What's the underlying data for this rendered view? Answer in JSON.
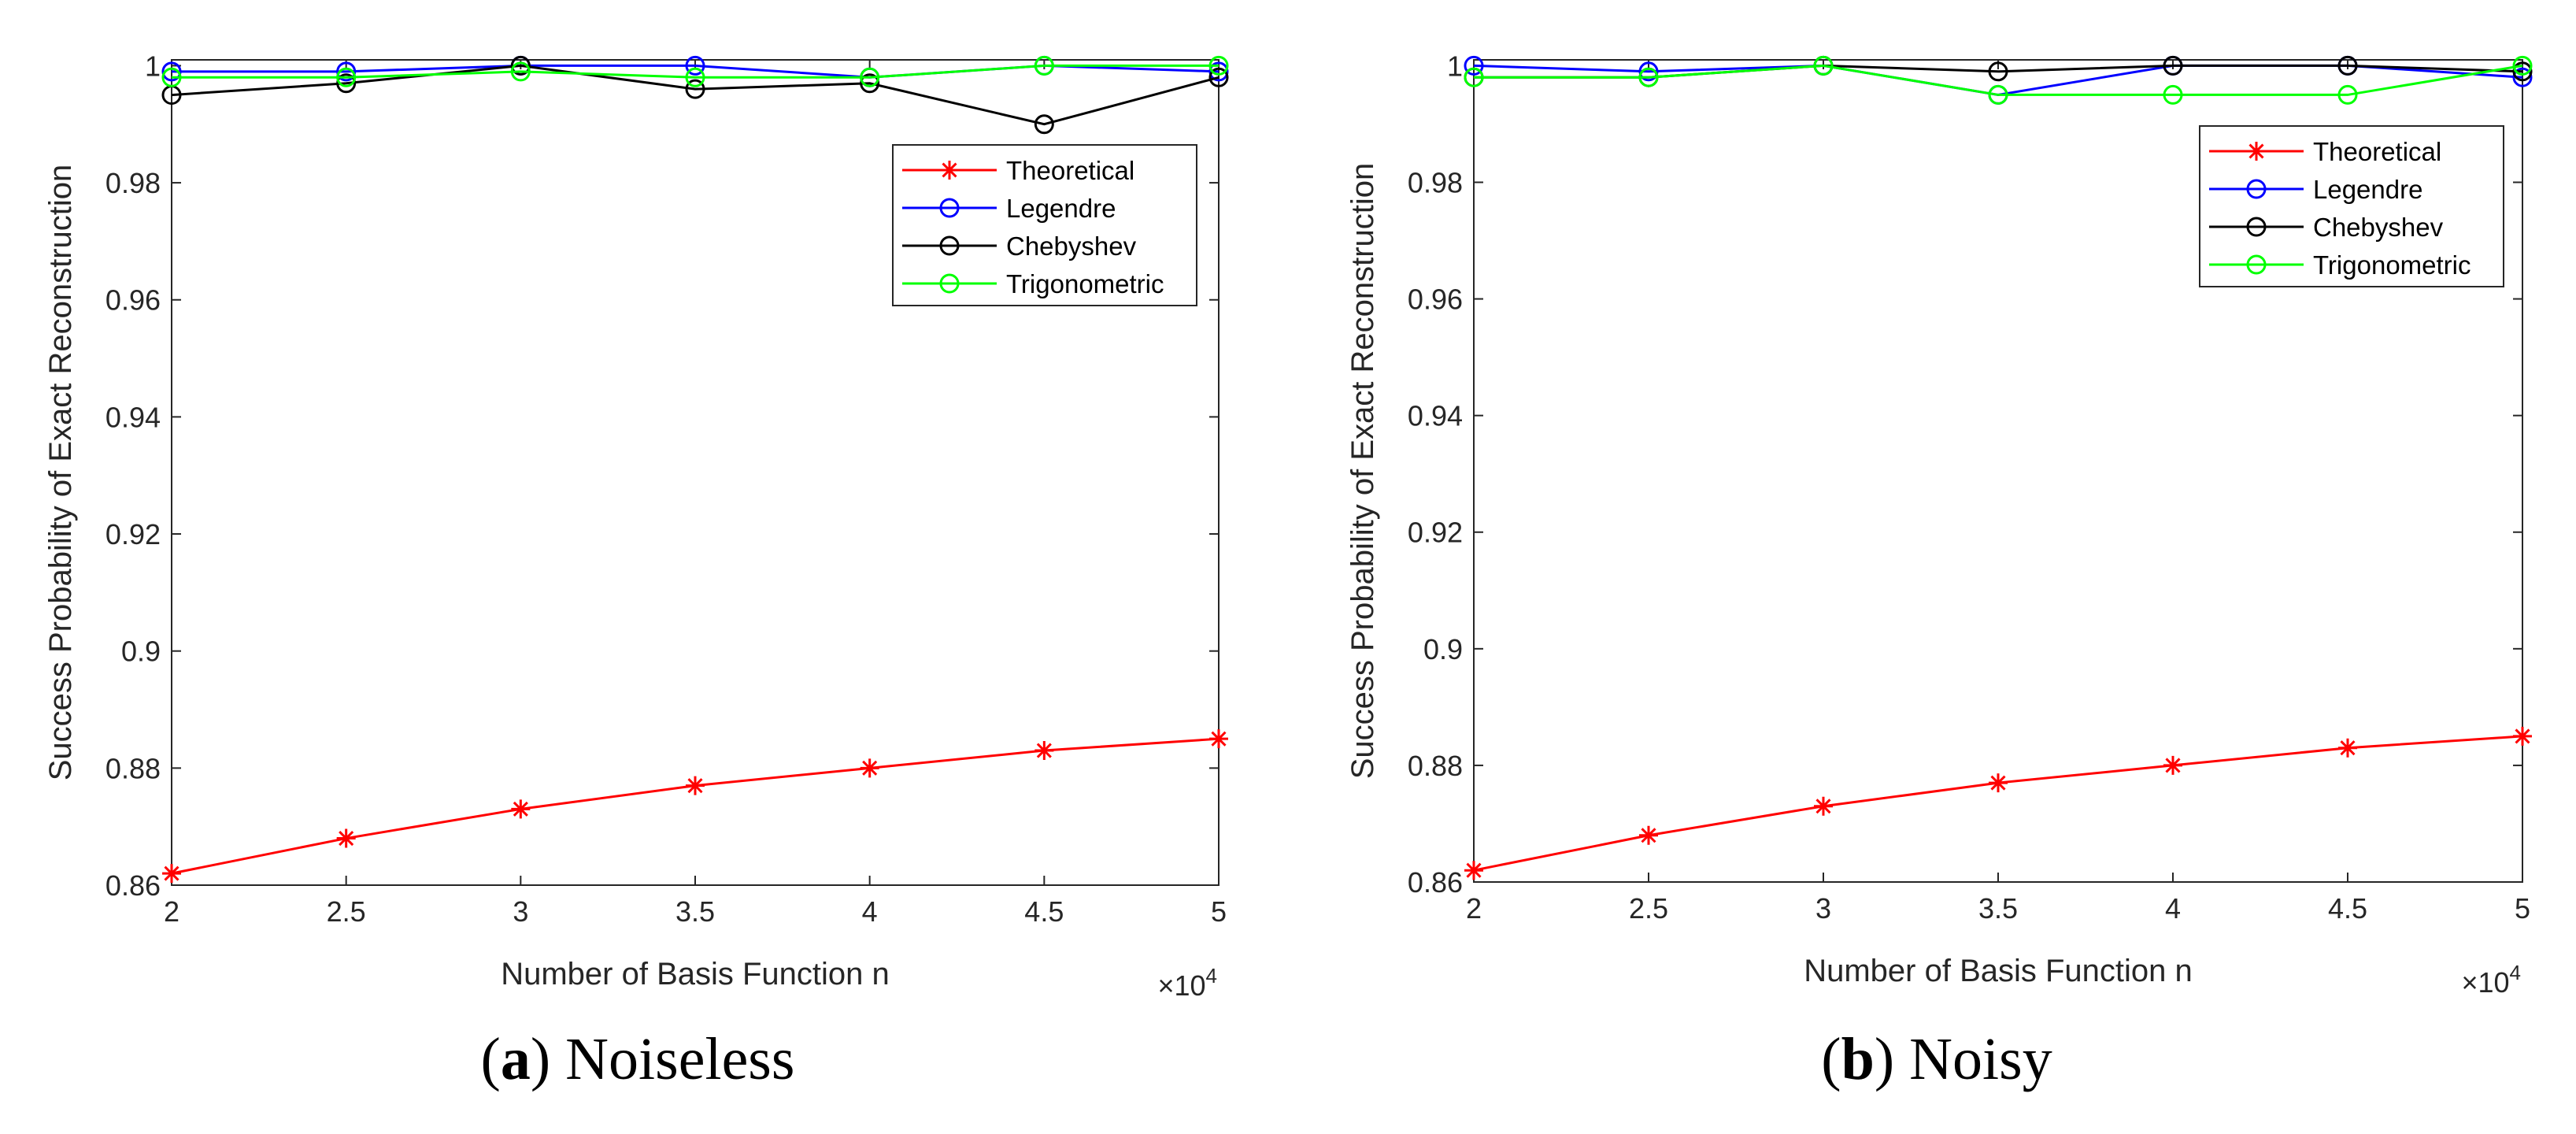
{
  "chart_data": [
    {
      "type": "line",
      "caption": {
        "letter": "a",
        "text": "Noiseless"
      },
      "xlabel": "Number of Basis Function n",
      "ylabel": "Success Probability of Exact Reconstruction",
      "x_multiplier": {
        "base": "×10",
        "exp": "4"
      },
      "xlim": [
        2,
        5
      ],
      "ylim": [
        0.86,
        1.001
      ],
      "xticks": [
        2,
        2.5,
        3,
        3.5,
        4,
        4.5,
        5
      ],
      "xtick_labels": [
        "2",
        "2.5",
        "3",
        "3.5",
        "4",
        "4.5",
        "5"
      ],
      "yticks": [
        0.86,
        0.88,
        0.9,
        0.92,
        0.94,
        0.96,
        0.98,
        1
      ],
      "ytick_labels": [
        "0.86",
        "0.88",
        "0.9",
        "0.92",
        "0.94",
        "0.96",
        "0.98",
        "1"
      ],
      "legend_position": "top-right",
      "x": [
        2,
        2.5,
        3,
        3.5,
        4,
        4.5,
        5
      ],
      "series": [
        {
          "name": "Theoretical",
          "color": "#ff0000",
          "marker": "star",
          "values": [
            0.862,
            0.868,
            0.873,
            0.877,
            0.88,
            0.883,
            0.885
          ]
        },
        {
          "name": "Legendre",
          "color": "#0000ff",
          "marker": "circle",
          "values": [
            0.999,
            0.999,
            1.0,
            1.0,
            0.998,
            1.0,
            0.999
          ]
        },
        {
          "name": "Chebyshev",
          "color": "#000000",
          "marker": "circle",
          "values": [
            0.995,
            0.997,
            1.0,
            0.996,
            0.997,
            0.99,
            0.998
          ]
        },
        {
          "name": "Trigonometric",
          "color": "#00ff00",
          "marker": "circle",
          "values": [
            0.998,
            0.998,
            0.999,
            0.998,
            0.998,
            1.0,
            1.0
          ]
        }
      ]
    },
    {
      "type": "line",
      "caption": {
        "letter": "b",
        "text": "Noisy"
      },
      "xlabel": "Number of Basis Function n",
      "ylabel": "Success Probability of Exact Reconstruction",
      "x_multiplier": {
        "base": "×10",
        "exp": "4"
      },
      "xlim": [
        2,
        5
      ],
      "ylim": [
        0.86,
        1.001
      ],
      "xticks": [
        2,
        2.5,
        3,
        3.5,
        4,
        4.5,
        5
      ],
      "xtick_labels": [
        "2",
        "2.5",
        "3",
        "3.5",
        "4",
        "4.5",
        "5"
      ],
      "yticks": [
        0.86,
        0.88,
        0.9,
        0.92,
        0.94,
        0.96,
        0.98,
        1
      ],
      "ytick_labels": [
        "0.86",
        "0.88",
        "0.9",
        "0.92",
        "0.94",
        "0.96",
        "0.98",
        "1"
      ],
      "legend_position": "top-right",
      "x": [
        2,
        2.5,
        3,
        3.5,
        4,
        4.5,
        5
      ],
      "series": [
        {
          "name": "Theoretical",
          "color": "#ff0000",
          "marker": "star",
          "values": [
            0.862,
            0.868,
            0.873,
            0.877,
            0.88,
            0.883,
            0.885
          ]
        },
        {
          "name": "Legendre",
          "color": "#0000ff",
          "marker": "circle",
          "values": [
            1.0,
            0.999,
            1.0,
            0.995,
            1.0,
            1.0,
            0.998
          ]
        },
        {
          "name": "Chebyshev",
          "color": "#000000",
          "marker": "circle",
          "values": [
            0.998,
            0.998,
            1.0,
            0.999,
            1.0,
            1.0,
            0.999
          ]
        },
        {
          "name": "Trigonometric",
          "color": "#00ff00",
          "marker": "circle",
          "values": [
            0.998,
            0.998,
            1.0,
            0.995,
            0.995,
            0.995,
            1.0
          ]
        }
      ]
    }
  ]
}
